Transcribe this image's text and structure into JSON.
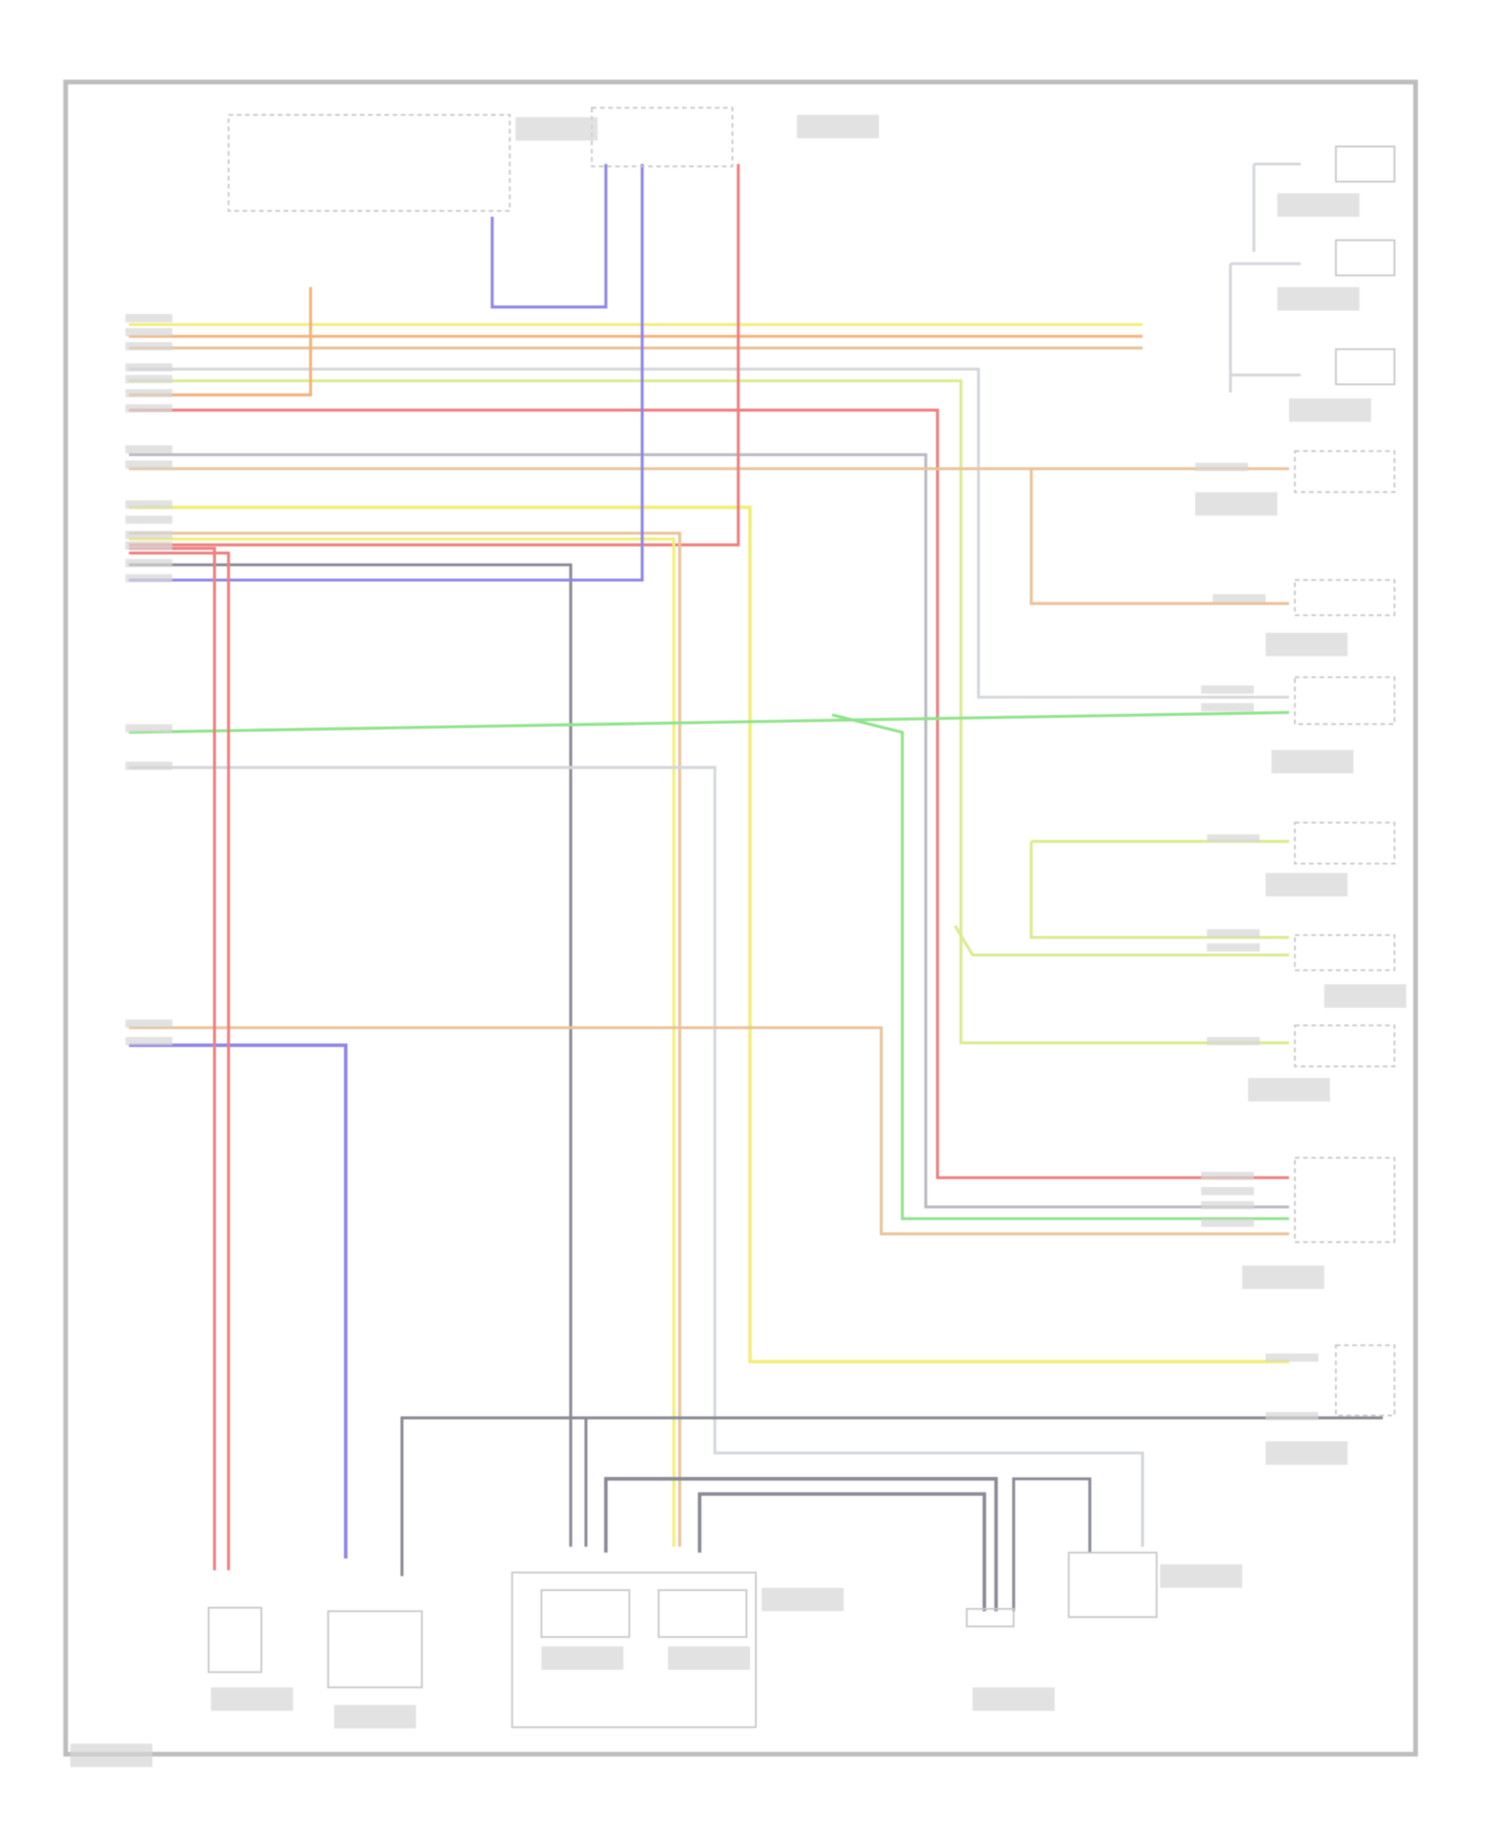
{
  "diagram": {
    "wire_colors": {
      "yellow": "#f2ee7a",
      "orange": "#f5b27a",
      "red": "#ee7f7f",
      "purple": "#8f86e6",
      "green": "#8fe38a",
      "gray": "#b9b9c4",
      "dark_gray": "#8a8a96",
      "light_gray": "#d4d8dc",
      "tan": "#e9c39a",
      "lime": "#d9ec8f"
    },
    "frame_color": "#bdbdbd"
  }
}
